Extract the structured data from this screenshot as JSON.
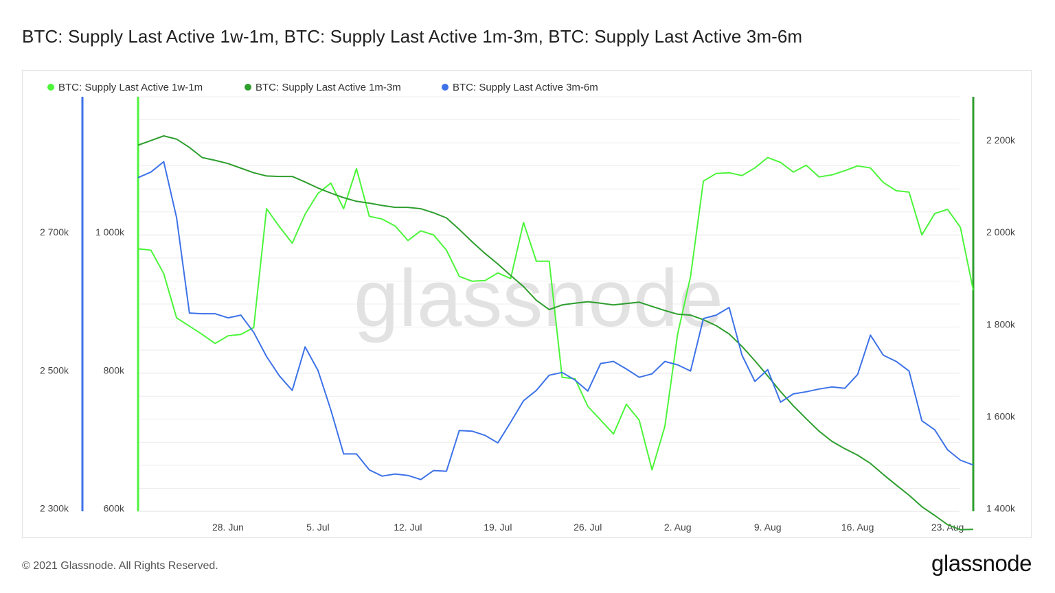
{
  "title": "BTC: Supply Last Active 1w-1m, BTC: Supply Last Active 1m-3m, BTC: Supply Last Active 3m-6m",
  "footer": {
    "copyright": "© 2021 Glassnode. All Rights Reserved.",
    "logo": "glassnode"
  },
  "watermark": "glassnode",
  "colors": {
    "series_1w_1m": "#4cf53a",
    "series_1m_3m": "#2e9e2e",
    "series_3m_6m": "#3d72e8",
    "grid": "#ececec"
  },
  "chart_data": {
    "type": "line",
    "x": [
      "2021-06-21",
      "2021-06-22",
      "2021-06-23",
      "2021-06-24",
      "2021-06-25",
      "2021-06-26",
      "2021-06-27",
      "2021-06-28",
      "2021-06-29",
      "2021-06-30",
      "2021-07-01",
      "2021-07-02",
      "2021-07-03",
      "2021-07-04",
      "2021-07-05",
      "2021-07-06",
      "2021-07-07",
      "2021-07-08",
      "2021-07-09",
      "2021-07-10",
      "2021-07-11",
      "2021-07-12",
      "2021-07-13",
      "2021-07-14",
      "2021-07-15",
      "2021-07-16",
      "2021-07-17",
      "2021-07-18",
      "2021-07-19",
      "2021-07-20",
      "2021-07-21",
      "2021-07-22",
      "2021-07-23",
      "2021-07-24",
      "2021-07-25",
      "2021-07-26",
      "2021-07-27",
      "2021-07-28",
      "2021-07-29",
      "2021-07-30",
      "2021-07-31",
      "2021-08-01",
      "2021-08-02",
      "2021-08-03",
      "2021-08-04",
      "2021-08-05",
      "2021-08-06",
      "2021-08-07",
      "2021-08-08",
      "2021-08-09",
      "2021-08-10",
      "2021-08-11",
      "2021-08-12",
      "2021-08-13",
      "2021-08-14",
      "2021-08-15",
      "2021-08-16",
      "2021-08-17",
      "2021-08-18",
      "2021-08-19",
      "2021-08-20",
      "2021-08-21",
      "2021-08-22",
      "2021-08-23",
      "2021-08-24",
      "2021-08-25"
    ],
    "x_ticks": [
      "28. Jun",
      "5. Jul",
      "12. Jul",
      "19. Jul",
      "26. Jul",
      "2. Aug",
      "9. Aug",
      "16. Aug",
      "23. Aug"
    ],
    "series": [
      {
        "name": "BTC: Supply Last Active 1w-1m",
        "axis": "middle",
        "values": [
          980,
          978,
          944,
          880,
          868,
          856,
          843,
          854,
          856,
          866,
          1038,
          1012,
          988,
          1030,
          1060,
          1075,
          1038,
          1096,
          1027,
          1023,
          1013,
          992,
          1006,
          1000,
          978,
          940,
          933,
          934,
          945,
          937,
          1018,
          962,
          962,
          794,
          792,
          752,
          732,
          712,
          755,
          732,
          660,
          723,
          857,
          940,
          1078,
          1089,
          1090,
          1086,
          1097,
          1112,
          1105,
          1091,
          1101,
          1084,
          1087,
          1093,
          1100,
          1097,
          1076,
          1064,
          1062,
          1000,
          1031,
          1037,
          1011,
          920
        ]
      },
      {
        "name": "BTC: Supply Last Active 1m-3m",
        "axis": "right",
        "values": [
          2195,
          2205,
          2215,
          2208,
          2190,
          2168,
          2162,
          2155,
          2145,
          2135,
          2128,
          2127,
          2127,
          2115,
          2102,
          2091,
          2081,
          2073,
          2069,
          2064,
          2060,
          2060,
          2057,
          2048,
          2037,
          2012,
          1985,
          1960,
          1937,
          1912,
          1888,
          1858,
          1838,
          1848,
          1852,
          1855,
          1852,
          1848,
          1851,
          1854,
          1845,
          1836,
          1828,
          1826,
          1816,
          1803,
          1785,
          1758,
          1727,
          1694,
          1660,
          1629,
          1601,
          1574,
          1552,
          1536,
          1522,
          1504,
          1480,
          1457,
          1435,
          1410,
          1391,
          1371,
          1360,
          1361
        ]
      },
      {
        "name": "BTC: Supply Last Active 3m-6m",
        "axis": "left",
        "values": [
          2783,
          2791,
          2806,
          2725,
          2587,
          2586,
          2586,
          2580,
          2584,
          2559,
          2524,
          2496,
          2475,
          2538,
          2504,
          2447,
          2383,
          2383,
          2360,
          2351,
          2354,
          2352,
          2346,
          2359,
          2358,
          2417,
          2416,
          2410,
          2399,
          2429,
          2460,
          2475,
          2497,
          2501,
          2490,
          2474,
          2514,
          2517,
          2506,
          2494,
          2499,
          2517,
          2512,
          2503,
          2579,
          2584,
          2595,
          2526,
          2488,
          2505,
          2458,
          2470,
          2473,
          2477,
          2480,
          2478,
          2498,
          2555,
          2526,
          2517,
          2503,
          2431,
          2418,
          2389,
          2374,
          2367
        ]
      }
    ],
    "y_axes": {
      "left": {
        "ticks": [
          "2 300k",
          "2 500k",
          "2 700k"
        ],
        "range": [
          2300,
          2900
        ]
      },
      "middle": {
        "ticks": [
          "600k",
          "800k",
          "1 000k"
        ],
        "range": [
          600,
          1200
        ]
      },
      "right": {
        "ticks": [
          "1 400k",
          "1 600k",
          "1 800k",
          "2 000k",
          "2 200k"
        ],
        "range": [
          1400,
          2300
        ]
      }
    },
    "grid": true,
    "legend_position": "top-left"
  }
}
